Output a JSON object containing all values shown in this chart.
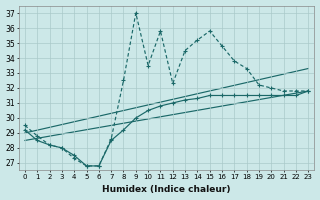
{
  "xlabel": "Humidex (Indice chaleur)",
  "background_color": "#cce8e8",
  "grid_color": "#aacaca",
  "line_color": "#1a6868",
  "xlim": [
    -0.5,
    23.5
  ],
  "ylim": [
    26.5,
    37.5
  ],
  "xticks": [
    0,
    1,
    2,
    3,
    4,
    5,
    6,
    7,
    8,
    9,
    10,
    11,
    12,
    13,
    14,
    15,
    16,
    17,
    18,
    19,
    20,
    21,
    22,
    23
  ],
  "yticks": [
    27,
    28,
    29,
    30,
    31,
    32,
    33,
    34,
    35,
    36,
    37
  ],
  "line_dashed": {
    "x": [
      0,
      1,
      2,
      3,
      4,
      5,
      6,
      7,
      8,
      9,
      10,
      11,
      12,
      13,
      14,
      15,
      16,
      17,
      18,
      19,
      20,
      21,
      22,
      23
    ],
    "y": [
      29.5,
      28.8,
      28.2,
      28.0,
      27.3,
      26.8,
      26.8,
      28.6,
      32.5,
      37.0,
      33.5,
      35.8,
      32.3,
      34.5,
      35.2,
      35.8,
      34.8,
      33.8,
      33.3,
      32.2,
      32.0,
      31.8,
      31.8,
      31.8
    ]
  },
  "line_solid_markers": {
    "x": [
      0,
      1,
      2,
      3,
      4,
      5,
      6,
      7,
      8,
      9,
      10,
      11,
      12,
      13,
      14,
      15,
      16,
      17,
      18,
      19,
      20,
      21,
      22,
      23
    ],
    "y": [
      29.2,
      28.5,
      28.2,
      28.0,
      27.5,
      26.8,
      26.8,
      28.5,
      29.2,
      30.0,
      30.5,
      30.8,
      31.0,
      31.2,
      31.3,
      31.5,
      31.5,
      31.5,
      31.5,
      31.5,
      31.5,
      31.5,
      31.5,
      31.8
    ]
  },
  "line_straight1": {
    "x": [
      0,
      23
    ],
    "y": [
      29.0,
      33.3
    ]
  },
  "line_straight2": {
    "x": [
      0,
      23
    ],
    "y": [
      28.5,
      31.8
    ]
  }
}
